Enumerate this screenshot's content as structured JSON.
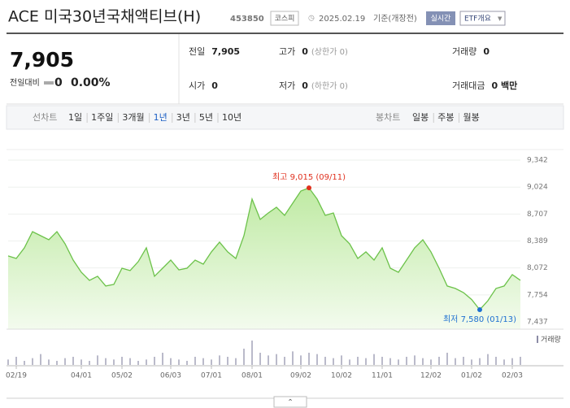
{
  "header": {
    "title": "ACE 미국30년국채액티브(H)",
    "code": "453850",
    "market": "코스피",
    "date": "2025.02.19",
    "basis": "기준(개장전)",
    "realtime": "실시간",
    "etf_link": "ETF개요"
  },
  "quote": {
    "price": "7,905",
    "change_label": "전일대비",
    "change": "0",
    "rate": "0.00%"
  },
  "stats": [
    {
      "label": "전일",
      "value": "7,905"
    },
    {
      "label": "고가",
      "value": "0",
      "sub": "(상한가 0)"
    },
    {
      "label": "거래량",
      "value": "0"
    },
    {
      "label": "시가",
      "value": "0"
    },
    {
      "label": "저가",
      "value": "0",
      "sub": "(하한가 0)"
    },
    {
      "label": "거래대금",
      "value": "0 백만"
    }
  ],
  "tabs": {
    "line_label": "선차트",
    "periods": [
      "1일",
      "1주일",
      "3개월",
      "1년",
      "3년",
      "5년",
      "10년"
    ],
    "active": 3,
    "candle_label": "봉차트",
    "candles": [
      "일봉",
      "주봉",
      "월봉"
    ]
  },
  "chart_data": {
    "type": "line",
    "color": "#6cc24a",
    "categories": [
      null,
      "02/19",
      null,
      null,
      null,
      null,
      null,
      null,
      null,
      "04/01",
      null,
      null,
      null,
      null,
      "05/02",
      null,
      null,
      null,
      null,
      null,
      "06/03",
      null,
      null,
      null,
      null,
      "07/01",
      null,
      null,
      null,
      null,
      "08/01",
      null,
      null,
      null,
      null,
      null,
      "09/02",
      null,
      null,
      null,
      null,
      "10/02",
      null,
      null,
      null,
      null,
      "11/01",
      null,
      null,
      null,
      null,
      null,
      "12/02",
      null,
      null,
      null,
      null,
      "01/02",
      null,
      null,
      null,
      null,
      "02/03",
      null
    ],
    "values": [
      8213,
      8184,
      8309,
      8500,
      8452,
      8404,
      8500,
      8356,
      8165,
      8021,
      7926,
      7974,
      7859,
      7878,
      8069,
      8041,
      8146,
      8309,
      7974,
      8069,
      8165,
      8050,
      8069,
      8165,
      8117,
      8261,
      8376,
      8261,
      8184,
      8452,
      8883,
      8643,
      8720,
      8787,
      8691,
      8835,
      8978,
      9015,
      8883,
      8691,
      8720,
      8452,
      8356,
      8184,
      8261,
      8165,
      8309,
      8069,
      8021,
      8165,
      8309,
      8404,
      8261,
      8069,
      7859,
      7830,
      7782,
      7700,
      7580,
      7686,
      7830,
      7859,
      7993,
      7926
    ],
    "ylim": [
      7437,
      9342
    ],
    "yticks": [
      {
        "value": 9342,
        "label": "9,342"
      },
      {
        "value": 9024,
        "label": "9,024"
      },
      {
        "value": 8707,
        "label": "8,707"
      },
      {
        "value": 8389,
        "label": "8,389"
      },
      {
        "value": 8072,
        "label": "8,072"
      },
      {
        "value": 7754,
        "label": "7,754"
      },
      {
        "value": 7437,
        "label": "7,437"
      }
    ],
    "grid": true,
    "high_label": "최고 9,015 (09/11)",
    "high_color": "#e0301e",
    "low_label": "최저 7,580 (01/13)",
    "low_color": "#1d6fd1",
    "volume": {
      "label": "거래량",
      "color": "#8c8ca6",
      "values": [
        4,
        6,
        3,
        5,
        8,
        4,
        3,
        5,
        6,
        4,
        3,
        7,
        5,
        4,
        6,
        5,
        3,
        4,
        6,
        9,
        5,
        4,
        3,
        6,
        5,
        4,
        7,
        6,
        5,
        12,
        18,
        9,
        7,
        8,
        6,
        10,
        7,
        9,
        8,
        6,
        5,
        7,
        4,
        6,
        5,
        8,
        6,
        5,
        4,
        6,
        7,
        5,
        4,
        6,
        9,
        5,
        6,
        4,
        5,
        8,
        6,
        4,
        5,
        6
      ]
    }
  }
}
